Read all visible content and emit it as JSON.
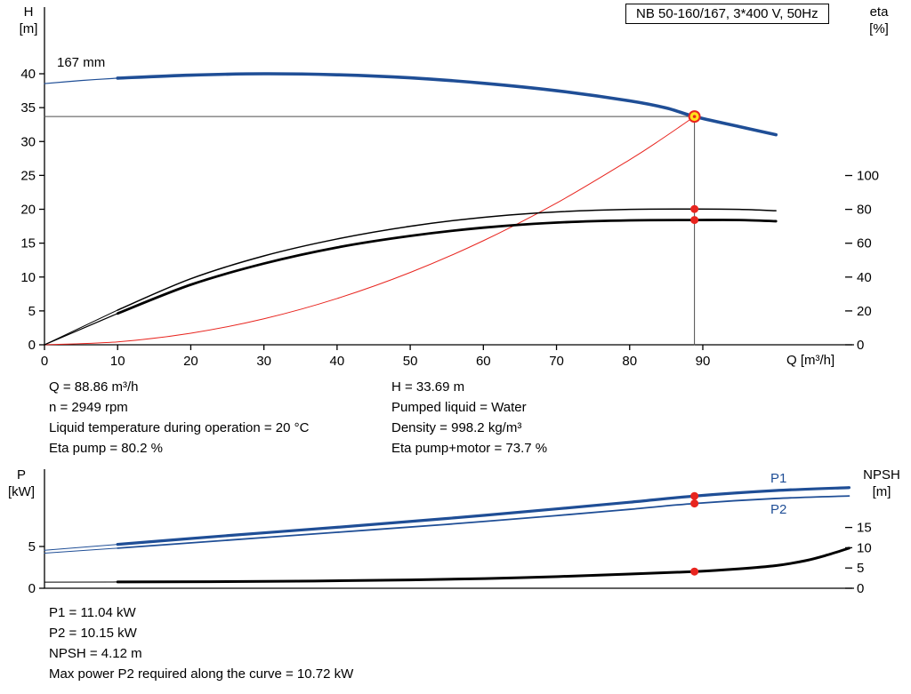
{
  "title_box": "NB 50-160/167, 3*400 V, 50Hz",
  "colors": {
    "curve_blue": "#1f4e96",
    "curve_black": "#000000",
    "curve_red": "#e8251f",
    "marker_yellow": "#ffe11a",
    "crosshair_gray": "#4d4d4d"
  },
  "labels": {
    "impeller": "167 mm",
    "p1": "P1",
    "p2": "P2",
    "h_axis": [
      "H",
      "[m]"
    ],
    "eta_axis": [
      "eta",
      "[%]"
    ],
    "q_axis": "Q [m³/h]",
    "p_axis": [
      "P",
      "[kW]"
    ],
    "npsh_axis": [
      "NPSH",
      "[m]"
    ]
  },
  "info_top": {
    "left": [
      "Q = 88.86 m³/h",
      "n = 2949 rpm",
      "Liquid temperature during operation = 20 °C",
      "Eta pump = 80.2 %"
    ],
    "right": [
      "H = 33.69 m",
      "Pumped liquid = Water",
      "Density = 998.2 kg/m³",
      "Eta pump+motor = 73.7 %"
    ]
  },
  "info_bottom": [
    "P1 = 11.04 kW",
    "P2 = 10.15 kW",
    "NPSH = 4.12 m",
    "Max power P2 required along the curve = 10.72 kW"
  ],
  "chart_data": [
    {
      "type": "line",
      "title": "NB 50-160/167, 3*400 V, 50Hz — head and efficiency",
      "xlabel": "Q [m³/h]",
      "ylabel_left": "H [m]",
      "ylabel_right": "eta [%]",
      "xlim": [
        0,
        110.7
      ],
      "ylim_left": [
        0,
        50
      ],
      "ylim_right": [
        0,
        110
      ],
      "x_ticks": [
        0,
        10,
        20,
        30,
        40,
        50,
        60,
        70,
        80,
        90
      ],
      "left_ticks": [
        0,
        5,
        10,
        15,
        20,
        25,
        30,
        35,
        40
      ],
      "right_ticks": [
        0,
        20,
        40,
        60,
        80,
        100
      ],
      "duty_point": {
        "Q": 88.86,
        "H": 33.69,
        "eta_pump": 80.2,
        "eta_pump_motor": 73.7
      },
      "series": [
        {
          "name": "system-curve",
          "axis": "left",
          "color": "#e8251f",
          "width": 1,
          "points": [
            [
              0,
              0
            ],
            [
              10,
              0.43
            ],
            [
              20,
              1.71
            ],
            [
              30,
              3.84
            ],
            [
              40,
              6.83
            ],
            [
              50,
              10.67
            ],
            [
              60,
              15.36
            ],
            [
              70,
              20.91
            ],
            [
              80,
              27.31
            ],
            [
              84.5,
              30.46
            ],
            [
              88.86,
              33.69
            ]
          ]
        },
        {
          "name": "duty-crosshair-horizontal",
          "axis": "left",
          "color": "#4d4d4d",
          "width": 1,
          "smooth": false,
          "points": [
            [
              0,
              33.69
            ],
            [
              88.86,
              33.69
            ]
          ]
        },
        {
          "name": "duty-crosshair-vertical",
          "axis": "left",
          "color": "#4d4d4d",
          "width": 1,
          "smooth": false,
          "points": [
            [
              88.86,
              33.69
            ],
            [
              88.86,
              0
            ]
          ]
        },
        {
          "name": "head-curve-lead",
          "axis": "left",
          "color": "#1f4e96",
          "width": 1.2,
          "points": [
            [
              0,
              38.55
            ],
            [
              5,
              39.0
            ],
            [
              10,
              39.35
            ]
          ]
        },
        {
          "name": "head-curve",
          "axis": "left",
          "color": "#1f4e96",
          "width": 3.6,
          "points": [
            [
              10,
              39.35
            ],
            [
              20,
              39.8
            ],
            [
              30,
              40.0
            ],
            [
              40,
              39.85
            ],
            [
              50,
              39.4
            ],
            [
              60,
              38.6
            ],
            [
              70,
              37.5
            ],
            [
              80,
              36.0
            ],
            [
              85,
              34.95
            ],
            [
              88.86,
              33.69
            ],
            [
              95,
              32.2
            ],
            [
              100,
              31.0
            ]
          ]
        },
        {
          "name": "eta-pump-lead",
          "axis": "right",
          "color": "#000000",
          "width": 1,
          "points": [
            [
              0,
              0
            ],
            [
              10,
              20.5
            ]
          ]
        },
        {
          "name": "eta-pump-curve",
          "axis": "right",
          "color": "#000000",
          "width": 1.5,
          "points": [
            [
              10,
              20.5
            ],
            [
              20,
              39
            ],
            [
              30,
              52.5
            ],
            [
              40,
              62.5
            ],
            [
              50,
              70
            ],
            [
              60,
              75.3
            ],
            [
              70,
              78.5
            ],
            [
              80,
              80.0
            ],
            [
              88.86,
              80.2
            ],
            [
              95,
              80.0
            ],
            [
              100,
              79.2
            ]
          ]
        },
        {
          "name": "eta-pump-motor-lead",
          "axis": "right",
          "color": "#000000",
          "width": 1.2,
          "points": [
            [
              0,
              0
            ],
            [
              10,
              18.5
            ]
          ]
        },
        {
          "name": "eta-pump-motor-curve",
          "axis": "right",
          "color": "#000000",
          "width": 2.8,
          "points": [
            [
              10,
              18.5
            ],
            [
              20,
              35.5
            ],
            [
              30,
              48
            ],
            [
              40,
              57.5
            ],
            [
              50,
              64.3
            ],
            [
              60,
              69.2
            ],
            [
              70,
              72.2
            ],
            [
              80,
              73.5
            ],
            [
              88.86,
              73.7
            ],
            [
              95,
              73.7
            ],
            [
              100,
              73.0
            ]
          ]
        }
      ],
      "markers": [
        {
          "name": "eta-pump-point",
          "axis": "right",
          "x": 88.86,
          "y": 80.2,
          "r": 4.5,
          "fill": "#e8251f"
        },
        {
          "name": "eta-pump-motor-point",
          "axis": "right",
          "x": 88.86,
          "y": 73.7,
          "r": 4.5,
          "fill": "#e8251f"
        },
        {
          "name": "duty-point",
          "axis": "left",
          "x": 88.86,
          "y": 33.69,
          "r": 6,
          "fill": "#ffe11a",
          "stroke": "#e8251f",
          "strokeWidth": 2,
          "center_dot": true
        }
      ]
    },
    {
      "type": "line",
      "title": "NB 50-160/167 — power and NPSH",
      "xlabel": "Q [m³/h]",
      "ylabel_left": "P [kW]",
      "ylabel_right": "NPSH [m]",
      "xlim": [
        0,
        110.7
      ],
      "ylim_left": [
        0,
        14
      ],
      "ylim_right": [
        0,
        29
      ],
      "x_ticks": [],
      "left_ticks": [
        0,
        5
      ],
      "right_ticks": [
        0,
        5,
        10,
        15
      ],
      "duty_point": {
        "Q": 88.86,
        "P1": 11.04,
        "P2": 10.15,
        "NPSH": 4.12
      },
      "series": [
        {
          "name": "p1-curve-lead",
          "axis": "left",
          "color": "#1f4e96",
          "width": 1,
          "points": [
            [
              0,
              4.55
            ],
            [
              10,
              5.25
            ]
          ]
        },
        {
          "name": "p1-curve",
          "axis": "left",
          "color": "#1f4e96",
          "width": 3.2,
          "points": [
            [
              10,
              5.25
            ],
            [
              25,
              6.3
            ],
            [
              40,
              7.3
            ],
            [
              55,
              8.35
            ],
            [
              70,
              9.5
            ],
            [
              80,
              10.3
            ],
            [
              88.86,
              11.04
            ],
            [
              100,
              11.7
            ],
            [
              110,
              12.05
            ]
          ]
        },
        {
          "name": "p2-curve-lead",
          "axis": "left",
          "color": "#1f4e96",
          "width": 1,
          "points": [
            [
              0,
              4.2
            ],
            [
              10,
              4.8
            ]
          ]
        },
        {
          "name": "p2-curve",
          "axis": "left",
          "color": "#1f4e96",
          "width": 1.8,
          "points": [
            [
              10,
              4.8
            ],
            [
              25,
              5.75
            ],
            [
              40,
              6.7
            ],
            [
              55,
              7.65
            ],
            [
              70,
              8.7
            ],
            [
              80,
              9.45
            ],
            [
              88.86,
              10.15
            ],
            [
              100,
              10.75
            ],
            [
              110,
              11.05
            ]
          ]
        },
        {
          "name": "npsh-curve-lead",
          "axis": "right",
          "color": "#000000",
          "width": 1,
          "points": [
            [
              0,
              1.5
            ],
            [
              10,
              1.55
            ]
          ]
        },
        {
          "name": "npsh-curve",
          "axis": "right",
          "color": "#000000",
          "width": 3,
          "points": [
            [
              10,
              1.55
            ],
            [
              30,
              1.7
            ],
            [
              50,
              2.05
            ],
            [
              65,
              2.6
            ],
            [
              80,
              3.5
            ],
            [
              88.86,
              4.12
            ],
            [
              95,
              4.8
            ],
            [
              100,
              5.6
            ],
            [
              104,
              6.8
            ],
            [
              107,
              8.2
            ],
            [
              110,
              9.9
            ]
          ]
        }
      ],
      "markers": [
        {
          "name": "p1-point",
          "axis": "left",
          "x": 88.86,
          "y": 11.04,
          "r": 4.5,
          "fill": "#e8251f"
        },
        {
          "name": "p2-point",
          "axis": "left",
          "x": 88.86,
          "y": 10.15,
          "r": 4.5,
          "fill": "#e8251f"
        },
        {
          "name": "npsh-point",
          "axis": "right",
          "x": 88.86,
          "y": 4.12,
          "r": 4.5,
          "fill": "#e8251f"
        }
      ]
    }
  ]
}
